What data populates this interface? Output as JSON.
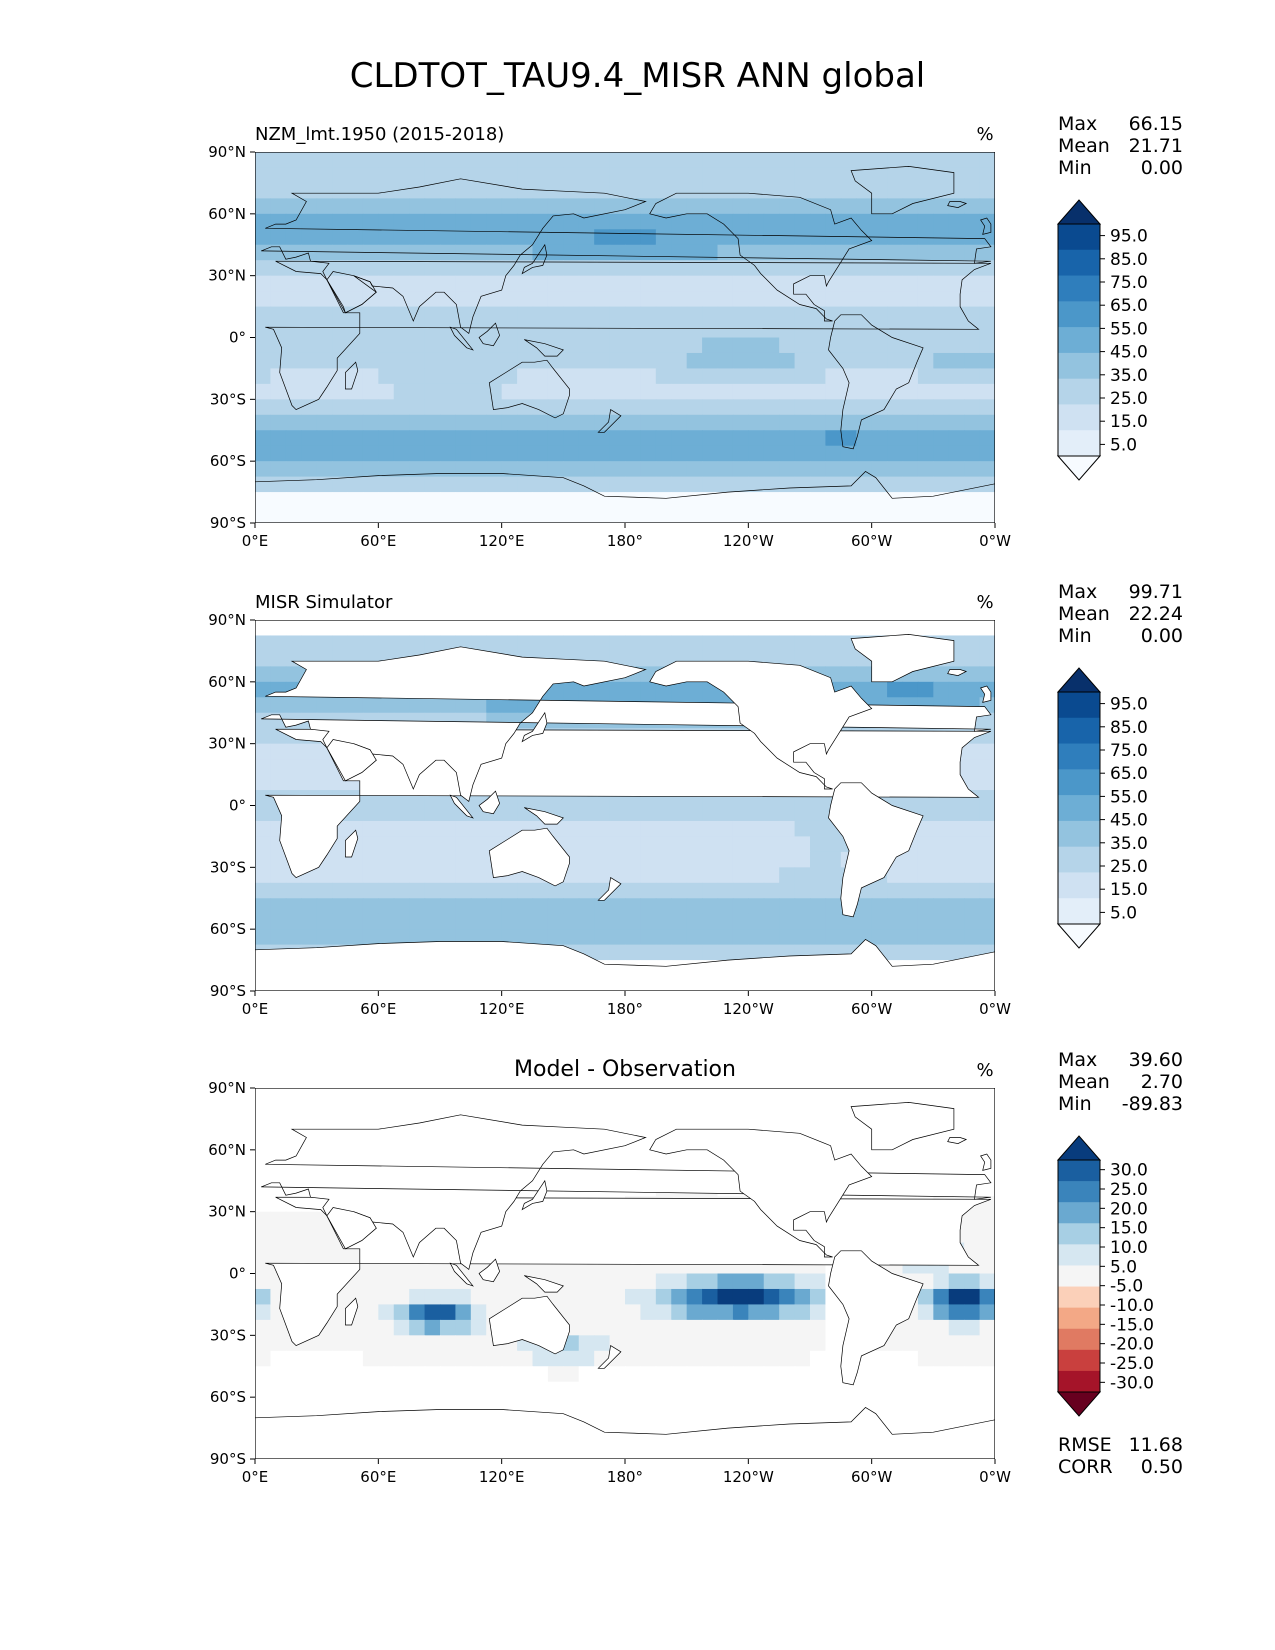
{
  "figure_title": "CLDTOT_TAU9.4_MISR ANN global",
  "chart_data": [
    {
      "type": "heatmap",
      "panel": "test",
      "title": "NZM_lmt.1950 (2015-2018)",
      "units": "%",
      "stats": {
        "max_label": "Max",
        "max": "66.15",
        "mean_label": "Mean",
        "mean": "21.71",
        "min_label": "Min",
        "min": "0.00"
      },
      "colorbar": {
        "levels": [
          0,
          5,
          10,
          20,
          30,
          40,
          50,
          60,
          70,
          80,
          90,
          100
        ],
        "tick_labels": [
          "5.0",
          "15.0",
          "25.0",
          "35.0",
          "45.0",
          "55.0",
          "65.0",
          "75.0",
          "85.0",
          "95.0"
        ],
        "colors": [
          "#f7fbff",
          "#e3eef9",
          "#cfe1f2",
          "#b5d4e9",
          "#93c3df",
          "#6daed5",
          "#4b97c9",
          "#2f7ebc",
          "#1864aa",
          "#0a4a90",
          "#08306b"
        ],
        "extend": "both"
      },
      "xlim": [
        0,
        360
      ],
      "ylim": [
        -90,
        90
      ],
      "x_ticks": [
        "0°E",
        "60°E",
        "120°E",
        "180°",
        "120°W",
        "60°W",
        "0°W"
      ],
      "y_ticks": [
        "90°N",
        "60°N",
        "30°N",
        "0°",
        "30°S",
        "60°S",
        "90°S"
      ]
    },
    {
      "type": "heatmap",
      "panel": "reference",
      "title": "MISR Simulator",
      "units": "%",
      "stats": {
        "max_label": "Max",
        "max": "99.71",
        "mean_label": "Mean",
        "mean": "22.24",
        "min_label": "Min",
        "min": "0.00"
      },
      "colorbar": {
        "levels": [
          0,
          5,
          10,
          20,
          30,
          40,
          50,
          60,
          70,
          80,
          90,
          100
        ],
        "tick_labels": [
          "5.0",
          "15.0",
          "25.0",
          "35.0",
          "45.0",
          "55.0",
          "65.0",
          "75.0",
          "85.0",
          "95.0"
        ],
        "colors": [
          "#f7fbff",
          "#e3eef9",
          "#cfe1f2",
          "#b5d4e9",
          "#93c3df",
          "#6daed5",
          "#4b97c9",
          "#2f7ebc",
          "#1864aa",
          "#0a4a90",
          "#08306b"
        ],
        "extend": "both"
      },
      "xlim": [
        0,
        360
      ],
      "ylim": [
        -90,
        90
      ],
      "x_ticks": [
        "0°E",
        "60°E",
        "120°E",
        "180°",
        "120°W",
        "60°W",
        "0°W"
      ],
      "y_ticks": [
        "90°N",
        "60°N",
        "30°N",
        "0°",
        "30°S",
        "60°S",
        "90°S"
      ]
    },
    {
      "type": "heatmap",
      "panel": "difference",
      "title": "Model - Observation",
      "units": "%",
      "stats": {
        "max_label": "Max",
        "max": "39.60",
        "mean_label": "Mean",
        "mean": "2.70",
        "min_label": "Min",
        "min": "-89.83"
      },
      "metrics": {
        "rmse_label": "RMSE",
        "rmse": "11.68",
        "corr_label": "CORR",
        "corr": "0.50"
      },
      "colorbar": {
        "levels": [
          -35,
          -30,
          -25,
          -20,
          -15,
          -10,
          -5,
          5,
          10,
          15,
          20,
          25,
          30,
          35
        ],
        "tick_labels": [
          "-30.0",
          "-25.0",
          "-20.0",
          "-15.0",
          "-10.0",
          "-5.0",
          "5.0",
          "10.0",
          "15.0",
          "20.0",
          "25.0",
          "30.0"
        ],
        "colors": [
          "#67001f",
          "#a51429",
          "#c9403e",
          "#e07a62",
          "#f3a886",
          "#fbd0b9",
          "#f5f5f5",
          "#d6e7f1",
          "#a7cfe4",
          "#6aa9d0",
          "#3a84bb",
          "#1a5fa0",
          "#083c7d"
        ],
        "extend": "both"
      },
      "xlim": [
        0,
        360
      ],
      "ylim": [
        -90,
        90
      ],
      "x_ticks": [
        "0°E",
        "60°E",
        "120°E",
        "180°",
        "120°W",
        "60°W",
        "0°W"
      ],
      "y_ticks": [
        "90°N",
        "60°N",
        "30°N",
        "0°",
        "30°S",
        "60°S",
        "90°S"
      ]
    }
  ]
}
